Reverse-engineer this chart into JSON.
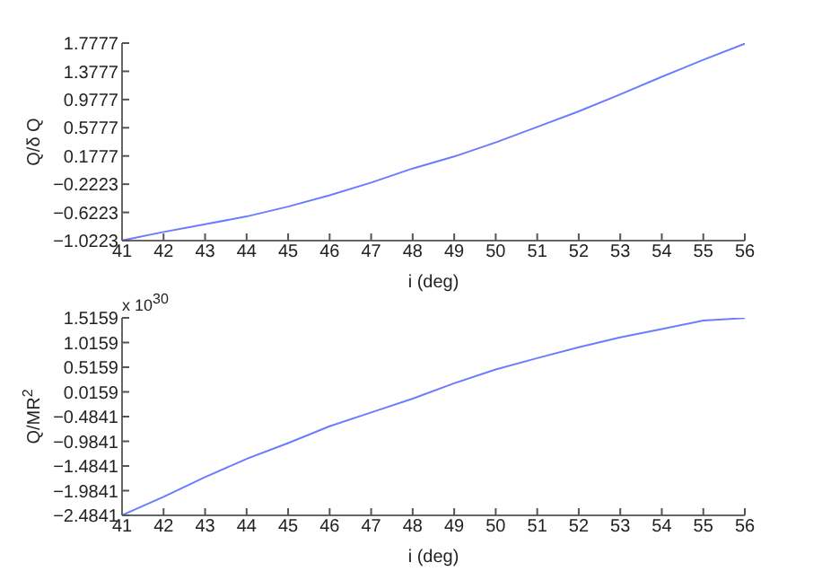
{
  "chart_data": [
    {
      "type": "line",
      "xlabel": "i (deg)",
      "ylabel": "Q/δ Q",
      "color": "#6b7cff",
      "x": [
        41,
        42,
        43,
        44,
        45,
        46,
        47,
        48,
        49,
        50,
        51,
        52,
        53,
        54,
        55,
        56
      ],
      "values": [
        -1.02,
        -0.9,
        -0.79,
        -0.68,
        -0.54,
        -0.38,
        -0.2,
        0.0,
        0.17,
        0.37,
        0.59,
        0.81,
        1.05,
        1.3,
        1.54,
        1.77
      ],
      "xlim": [
        41,
        56
      ],
      "xticks": [
        41,
        42,
        43,
        44,
        45,
        46,
        47,
        48,
        49,
        50,
        51,
        52,
        53,
        54,
        55,
        56
      ],
      "ylim": [
        -1.0223,
        1.7777
      ],
      "yticks": [
        -1.0223,
        -0.6223,
        -0.2223,
        0.1777,
        0.5777,
        0.9777,
        1.3777,
        1.7777
      ]
    },
    {
      "type": "line",
      "xlabel": "i (deg)",
      "ylabel": "Q/MR$^{2}$",
      "color": "#6b7cff",
      "annotations": [
        "x 10$^{30}$"
      ],
      "x": [
        41,
        42,
        43,
        44,
        45,
        46,
        47,
        48,
        49,
        50,
        51,
        52,
        53,
        54,
        55,
        56
      ],
      "values": [
        -2.48,
        -2.11,
        -1.71,
        -1.34,
        -1.02,
        -0.68,
        -0.4,
        -0.12,
        0.19,
        0.47,
        0.7,
        0.92,
        1.12,
        1.29,
        1.46,
        1.51
      ],
      "xlim": [
        41,
        56
      ],
      "xticks": [
        41,
        42,
        43,
        44,
        45,
        46,
        47,
        48,
        49,
        50,
        51,
        52,
        53,
        54,
        55,
        56
      ],
      "ylim": [
        -2.4841,
        1.5159
      ],
      "yticks": [
        -2.4841,
        -1.9841,
        -1.4841,
        -0.9841,
        -0.4841,
        0.0159,
        0.5159,
        1.0159,
        1.5159
      ]
    }
  ]
}
